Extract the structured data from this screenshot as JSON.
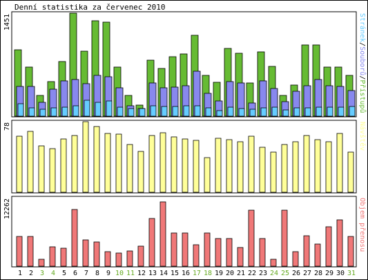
{
  "page": {
    "title": "Denní statistika za červenec 2010"
  },
  "colors": {
    "stranek": "#66ccff",
    "souboru": "#8888ee",
    "pristupu": "#66bb33",
    "navstev": "#ffff99",
    "objem": "#f07878",
    "weekday_label": "#000000",
    "weekend_label": "#66aa22"
  },
  "chart_data": [
    {
      "type": "bar",
      "name": "hits",
      "ymax_label": "1451",
      "ylim": [
        0,
        1451
      ],
      "side_label_parts": [
        "Stránek",
        "/",
        "Souborů",
        "/",
        "Přístupů"
      ],
      "categories": [
        "1",
        "2",
        "3",
        "4",
        "5",
        "6",
        "7",
        "8",
        "9",
        "10",
        "11",
        "12",
        "13",
        "14",
        "15",
        "16",
        "17",
        "18",
        "19",
        "20",
        "21",
        "22",
        "23",
        "24",
        "25",
        "26",
        "27",
        "28",
        "29",
        "30",
        "31"
      ],
      "series": [
        {
          "name": "Přístupů",
          "values": [
            935,
            690,
            295,
            490,
            765,
            1451,
            920,
            1345,
            1320,
            695,
            295,
            160,
            785,
            670,
            835,
            875,
            1140,
            575,
            480,
            955,
            890,
            470,
            905,
            705,
            295,
            435,
            1000,
            1000,
            695,
            690,
            575
          ]
        },
        {
          "name": "Souborů",
          "values": [
            420,
            420,
            190,
            380,
            500,
            520,
            455,
            570,
            555,
            400,
            145,
            110,
            465,
            400,
            410,
            430,
            630,
            320,
            215,
            490,
            470,
            185,
            495,
            390,
            200,
            350,
            425,
            520,
            425,
            420,
            365
          ]
        },
        {
          "name": "Stránek",
          "values": [
            175,
            120,
            95,
            115,
            125,
            145,
            225,
            195,
            210,
            125,
            110,
            105,
            145,
            135,
            135,
            145,
            150,
            120,
            80,
            125,
            110,
            95,
            120,
            125,
            85,
            115,
            120,
            125,
            130,
            130,
            135
          ]
        }
      ]
    },
    {
      "type": "bar",
      "name": "visits",
      "ymax_label": "78",
      "ylim": [
        0,
        78
      ],
      "side_label_parts": [
        "Návštěv"
      ],
      "categories": [
        "1",
        "2",
        "3",
        "4",
        "5",
        "6",
        "7",
        "8",
        "9",
        "10",
        "11",
        "12",
        "13",
        "14",
        "15",
        "16",
        "17",
        "18",
        "19",
        "20",
        "21",
        "22",
        "23",
        "24",
        "25",
        "26",
        "27",
        "28",
        "29",
        "30",
        "31"
      ],
      "series": [
        {
          "name": "Návštěv",
          "values": [
            62,
            67,
            51,
            48,
            59,
            63,
            78,
            73,
            65,
            64,
            53,
            45,
            63,
            66,
            61,
            59,
            57,
            38,
            60,
            58,
            56,
            62,
            50,
            44,
            53,
            56,
            63,
            58,
            56,
            65,
            44
          ]
        }
      ]
    },
    {
      "type": "bar",
      "name": "transfer",
      "ymax_label": "12262",
      "ylim": [
        0,
        12262
      ],
      "side_label_parts": [
        "Objem přenosu"
      ],
      "categories": [
        "1",
        "2",
        "3",
        "4",
        "5",
        "6",
        "7",
        "8",
        "9",
        "10",
        "11",
        "12",
        "13",
        "14",
        "15",
        "16",
        "17",
        "18",
        "19",
        "20",
        "21",
        "22",
        "23",
        "24",
        "25",
        "26",
        "27",
        "28",
        "29",
        "30",
        "31"
      ],
      "series": [
        {
          "name": "Objem přenosu",
          "values": [
            5300,
            5300,
            1250,
            3500,
            3200,
            10200,
            4700,
            4300,
            2600,
            2300,
            2700,
            3600,
            8600,
            11500,
            5900,
            5900,
            3800,
            5900,
            5000,
            5000,
            3400,
            10000,
            5000,
            1200,
            10000,
            2600,
            5400,
            4000,
            7100,
            8300,
            5300
          ]
        }
      ]
    }
  ],
  "days": [
    {
      "label": "1",
      "weekend": false
    },
    {
      "label": "2",
      "weekend": false
    },
    {
      "label": "3",
      "weekend": true
    },
    {
      "label": "4",
      "weekend": true
    },
    {
      "label": "5",
      "weekend": false
    },
    {
      "label": "6",
      "weekend": false
    },
    {
      "label": "7",
      "weekend": false
    },
    {
      "label": "8",
      "weekend": false
    },
    {
      "label": "9",
      "weekend": false
    },
    {
      "label": "10",
      "weekend": true
    },
    {
      "label": "11",
      "weekend": true
    },
    {
      "label": "12",
      "weekend": false
    },
    {
      "label": "13",
      "weekend": false
    },
    {
      "label": "14",
      "weekend": false
    },
    {
      "label": "15",
      "weekend": false
    },
    {
      "label": "16",
      "weekend": false
    },
    {
      "label": "17",
      "weekend": true
    },
    {
      "label": "18",
      "weekend": true
    },
    {
      "label": "19",
      "weekend": false
    },
    {
      "label": "20",
      "weekend": false
    },
    {
      "label": "21",
      "weekend": false
    },
    {
      "label": "22",
      "weekend": false
    },
    {
      "label": "23",
      "weekend": false
    },
    {
      "label": "24",
      "weekend": true
    },
    {
      "label": "25",
      "weekend": true
    },
    {
      "label": "26",
      "weekend": false
    },
    {
      "label": "27",
      "weekend": false
    },
    {
      "label": "28",
      "weekend": false
    },
    {
      "label": "29",
      "weekend": false
    },
    {
      "label": "30",
      "weekend": false
    },
    {
      "label": "31",
      "weekend": true
    }
  ]
}
